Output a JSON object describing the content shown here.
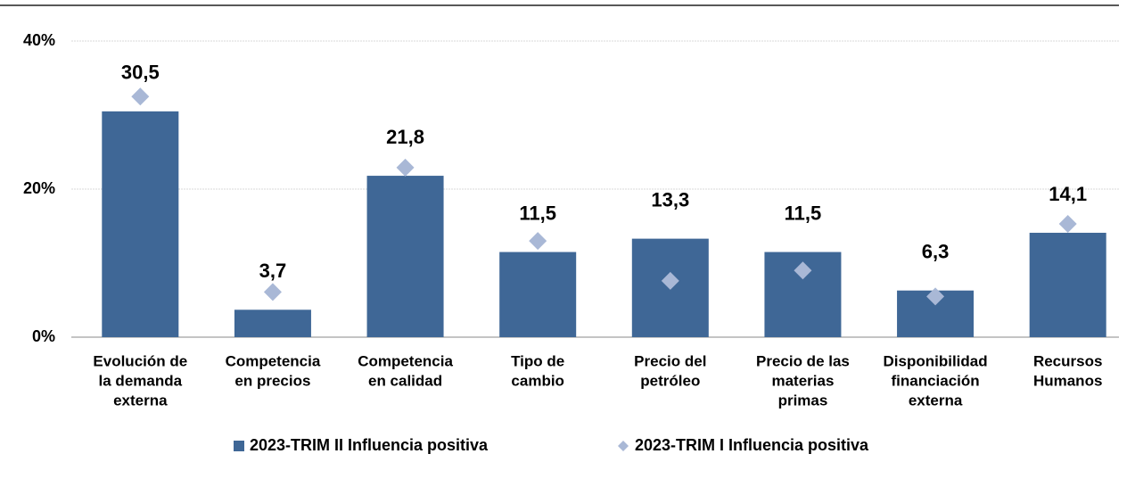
{
  "chart_data": {
    "type": "bar",
    "categories": [
      [
        "Evolución de",
        "la demanda",
        "externa"
      ],
      [
        "Competencia",
        "en precios"
      ],
      [
        "Competencia",
        "en calidad"
      ],
      [
        "Tipo de",
        "cambio"
      ],
      [
        "Precio del",
        "petróleo"
      ],
      [
        "Precio de las",
        "materias",
        "primas"
      ],
      [
        "Disponibilidad",
        "financiación",
        "externa"
      ],
      [
        "Recursos",
        "Humanos"
      ]
    ],
    "series": [
      {
        "name": "2023-TRIM II Influencia positiva",
        "type": "bar",
        "color": "#3f6796",
        "values": [
          30.5,
          3.7,
          21.8,
          11.5,
          13.3,
          11.5,
          6.3,
          14.1
        ],
        "value_labels": [
          "30,5",
          "3,7",
          "21,8",
          "11,5",
          "13,3",
          "11,5",
          "6,3",
          "14,1"
        ]
      },
      {
        "name": "2023-TRIM I Influencia positiva",
        "type": "scatter",
        "marker": "diamond",
        "color": "#a9b8d6",
        "values": [
          32.5,
          6.1,
          22.9,
          13.0,
          7.6,
          9.0,
          5.5,
          15.3
        ]
      }
    ],
    "ylim": [
      0,
      40
    ],
    "yticks": [
      {
        "value": 0,
        "label": "0%"
      },
      {
        "value": 20,
        "label": "20%"
      },
      {
        "value": 40,
        "label": "40%"
      }
    ],
    "grid": true,
    "legend": "bottom"
  }
}
